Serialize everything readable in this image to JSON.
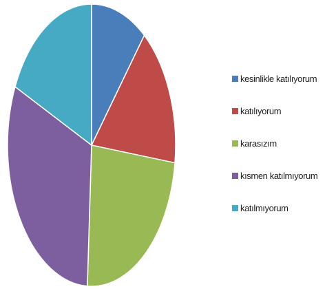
{
  "chart_data": {
    "type": "pie",
    "categories": [
      "kesinlikle katılıyorum",
      "katılıyorum",
      "karasızım",
      "kısmen katılmıyorum",
      "katılmıyorum"
    ],
    "values": [
      10.8,
      16.2,
      23.8,
      31.0,
      18.2
    ],
    "colors": [
      "#4a7ebb",
      "#be4b48",
      "#98b954",
      "#7d5fa0",
      "#46aac5"
    ],
    "legend": "right",
    "start_angle": "12 o'clock, clockwise"
  }
}
